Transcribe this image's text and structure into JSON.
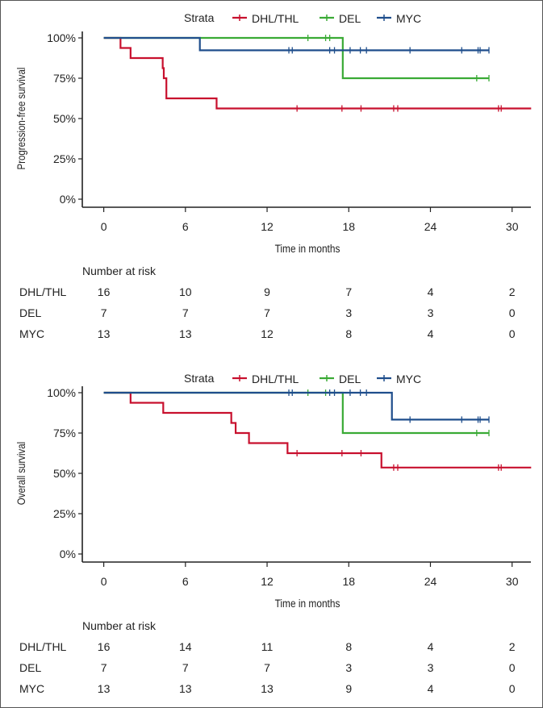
{
  "colors": {
    "DHL/THL": "#C8102E",
    "DEL": "#3AAA35",
    "MYC": "#1F4E8C"
  },
  "chart_data": [
    {
      "type": "line",
      "subtype": "kaplan-meier",
      "legend_title": "Strata",
      "legend": [
        "DHL/THL",
        "DEL",
        "MYC"
      ],
      "legend_position": "top",
      "xlabel": "Time in months",
      "ylabel": "Progression-free survival",
      "xlim": [
        0,
        31.4
      ],
      "ylim": [
        0,
        100
      ],
      "xticks": [
        "0",
        "6",
        "12",
        "18",
        "24",
        "30"
      ],
      "yticks": [
        "0%",
        "25%",
        "50%",
        "75%",
        "100%"
      ],
      "series": [
        {
          "name": "DHL/THL",
          "steps": [
            [
              0,
              100
            ],
            [
              1.23,
              93.75
            ],
            [
              1.97,
              87.5
            ],
            [
              4.33,
              81.25
            ],
            [
              4.41,
              75
            ],
            [
              4.6,
              62.5
            ],
            [
              8.29,
              56.25
            ]
          ],
          "censor": [
            14.2,
            17.5,
            18.9,
            21.3,
            21.6,
            29.0,
            29.2
          ],
          "end": 31.4
        },
        {
          "name": "DEL",
          "steps": [
            [
              0,
              100
            ],
            [
              17.56,
              75
            ]
          ],
          "censor": [
            15.0,
            16.3,
            16.6,
            27.4,
            28.3
          ],
          "end": 28.3
        },
        {
          "name": "MYC",
          "steps": [
            [
              0,
              100
            ],
            [
              7.06,
              92.3
            ]
          ],
          "censor": [
            13.6,
            13.85,
            16.6,
            16.95,
            18.1,
            18.85,
            19.3,
            22.5,
            26.3,
            27.5,
            27.65,
            28.3
          ],
          "end": 28.3
        }
      ],
      "risk_table": {
        "title": "Number at risk",
        "rows": [
          {
            "name": "DHL/THL",
            "values": [
              "16",
              "10",
              "9",
              "7",
              "4",
              "2"
            ]
          },
          {
            "name": "DEL",
            "values": [
              "7",
              "7",
              "7",
              "3",
              "3",
              "0"
            ]
          },
          {
            "name": "MYC",
            "values": [
              "13",
              "13",
              "12",
              "8",
              "4",
              "0"
            ]
          }
        ]
      }
    },
    {
      "type": "line",
      "subtype": "kaplan-meier",
      "legend_title": "Strata",
      "legend": [
        "DHL/THL",
        "DEL",
        "MYC"
      ],
      "legend_position": "top",
      "xlabel": "Time in months",
      "ylabel": "Overall survival",
      "xlim": [
        0,
        31.4
      ],
      "ylim": [
        0,
        100
      ],
      "xticks": [
        "0",
        "6",
        "12",
        "18",
        "24",
        "30"
      ],
      "yticks": [
        "0%",
        "25%",
        "50%",
        "75%",
        "100%"
      ],
      "series": [
        {
          "name": "DHL/THL",
          "steps": [
            [
              0,
              100
            ],
            [
              1.97,
              93.75
            ],
            [
              4.37,
              87.5
            ],
            [
              9.37,
              81.25
            ],
            [
              9.69,
              75
            ],
            [
              10.67,
              68.75
            ],
            [
              13.5,
              62.5
            ],
            [
              20.4,
              53.6
            ]
          ],
          "censor": [
            14.2,
            17.5,
            18.9,
            21.3,
            21.6,
            29.0,
            29.2
          ],
          "end": 31.4
        },
        {
          "name": "DEL",
          "steps": [
            [
              0,
              100
            ],
            [
              17.56,
              75
            ]
          ],
          "censor": [
            15.0,
            16.3,
            27.4,
            28.3
          ],
          "end": 28.3
        },
        {
          "name": "MYC",
          "steps": [
            [
              0,
              100
            ],
            [
              21.17,
              83.3
            ]
          ],
          "censor": [
            13.6,
            13.85,
            16.6,
            16.95,
            18.1,
            18.85,
            19.3,
            22.5,
            26.3,
            27.5,
            27.65,
            28.3
          ],
          "end": 28.3
        }
      ],
      "risk_table": {
        "title": "Number at risk",
        "rows": [
          {
            "name": "DHL/THL",
            "values": [
              "16",
              "14",
              "11",
              "8",
              "4",
              "2"
            ]
          },
          {
            "name": "DEL",
            "values": [
              "7",
              "7",
              "7",
              "3",
              "3",
              "0"
            ]
          },
          {
            "name": "MYC",
            "values": [
              "13",
              "13",
              "13",
              "9",
              "4",
              "0"
            ]
          }
        ]
      }
    }
  ]
}
